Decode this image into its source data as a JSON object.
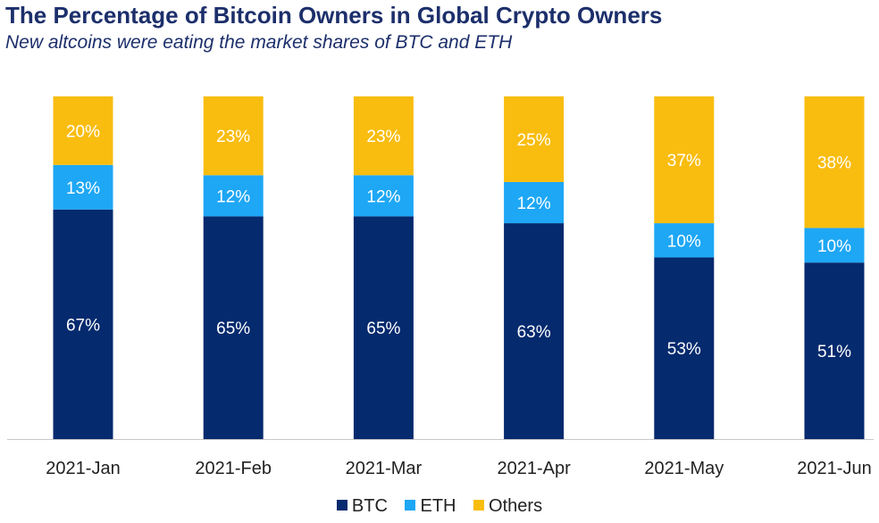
{
  "chart_data": {
    "type": "bar",
    "stacked": true,
    "title": "The Percentage of Bitcoin Owners in Global Crypto Owners",
    "subtitle": "New altcoins were eating the market shares of BTC and ETH",
    "categories": [
      "2021-Jan",
      "2021-Feb",
      "2021-Mar",
      "2021-Apr",
      "2021-May",
      "2021-Jun"
    ],
    "series": [
      {
        "name": "BTC",
        "color": "#052a6e",
        "values": [
          67,
          65,
          65,
          63,
          53,
          51
        ],
        "labels": [
          "67%",
          "65%",
          "65%",
          "63%",
          "53%",
          "51%"
        ]
      },
      {
        "name": "ETH",
        "color": "#1ea7f5",
        "values": [
          13,
          12,
          12,
          12,
          10,
          10
        ],
        "labels": [
          "13%",
          "12%",
          "12%",
          "12%",
          "10%",
          "10%"
        ]
      },
      {
        "name": "Others",
        "color": "#f9bd10",
        "values": [
          20,
          23,
          23,
          25,
          37,
          38
        ],
        "labels": [
          "20%",
          "23%",
          "23%",
          "25%",
          "37%",
          "38%"
        ]
      }
    ],
    "ylim": [
      0,
      100
    ],
    "legend": "bottom",
    "grid": false
  }
}
